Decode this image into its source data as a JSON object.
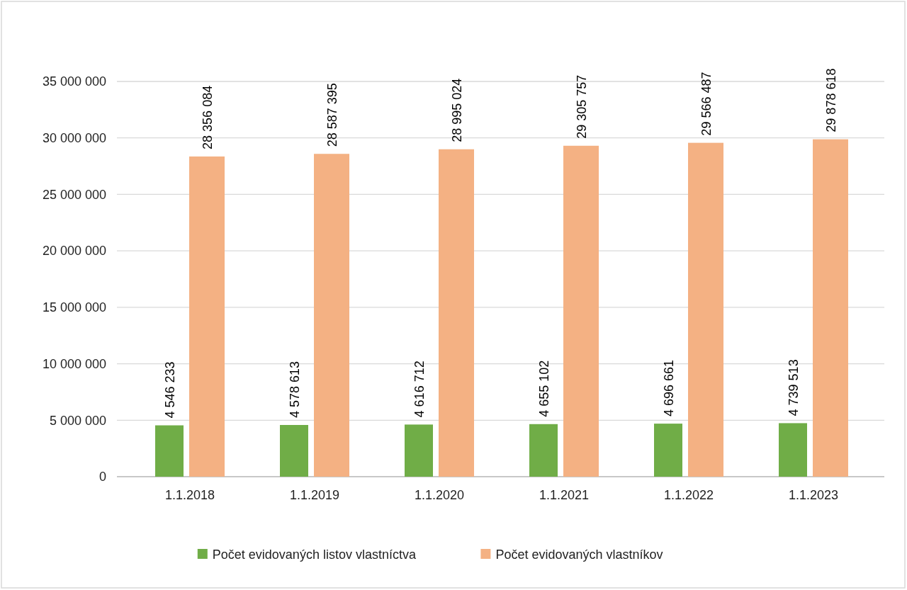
{
  "chart_data": {
    "type": "bar",
    "categories": [
      "1.1.2018",
      "1.1.2019",
      "1.1.2020",
      "1.1.2021",
      "1.1.2022",
      "1.1.2023"
    ],
    "series": [
      {
        "name": "Počet evidovaných listov vlastníctva",
        "color": "#70ad47",
        "values": [
          4546233,
          4578613,
          4616712,
          4655102,
          4696661,
          4739513
        ]
      },
      {
        "name": "Počet evidovaných vlastníkov",
        "color": "#f4b183",
        "values": [
          28356084,
          28587395,
          28995024,
          29305757,
          29566487,
          29878618
        ]
      }
    ],
    "ylim": [
      0,
      35000000
    ],
    "yticks": [
      0,
      {
        "value": 5000000,
        "label": "5 000 000"
      },
      {
        "value": 10000000,
        "label": "10 000 000"
      },
      {
        "value": 15000000,
        "label": "15 000 000"
      },
      {
        "value": 20000000,
        "label": "20 000 000"
      },
      {
        "value": 25000000,
        "label": "25 000 000"
      },
      {
        "value": 30000000,
        "label": "30 000 000"
      },
      {
        "value": 35000000,
        "label": "35 000 000"
      }
    ],
    "grid": "y",
    "data_labels": true,
    "legend": "bottom"
  }
}
